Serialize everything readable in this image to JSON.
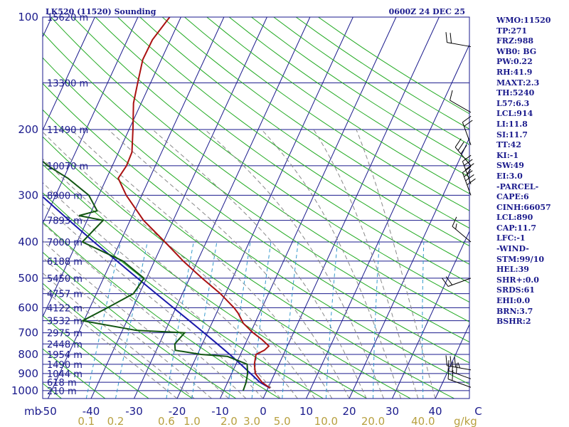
{
  "header": {
    "station": "LK520 (11520) Sounding",
    "time": "0600Z 24 DEC 25"
  },
  "indices": [
    "WMO:11520",
    "TP:271",
    "FRZ:988",
    "WB0: BG",
    "PW:0.22",
    "RH:41.9",
    "MAXT:2.3",
    "TH:5240",
    "L57:6.3",
    "LCL:914",
    "LI:11.8",
    "SI:11.7",
    "TT:42",
    "KI:-1",
    "SW:49",
    "EI:3.0",
    "-PARCEL-",
    "CAPE:6",
    "CINH:66057",
    "LCL:890",
    "CAP:11.7",
    "LFC:-1",
    "-WIND-",
    "STM:99/10",
    "HEL:39",
    "SHR+:0.0",
    "SRDS:61",
    "EHI:0.0",
    "BRN:3.7",
    "BSHR:2"
  ],
  "colors": {
    "isobar": "#1a1a8c",
    "isotherm": "#1a1a8c",
    "dry_adiabat": "#22aa22",
    "moist_adiabat": "#888888",
    "mixing_ratio": "#3399cc",
    "temperature": "#aa1111",
    "dewpoint": "#115511",
    "parcel": "#1a1aaa",
    "wind_barb": "#000000",
    "mixing_label": "#b8a040"
  },
  "chart_data": {
    "type": "skew-t",
    "title": "LK520 (11520) Sounding",
    "pressure_levels": [
      100,
      200,
      300,
      400,
      500,
      600,
      700,
      800,
      900,
      1000
    ],
    "pressure_axis_label": "mb",
    "temperature_ticks": [
      "-50",
      "-40",
      "-30",
      "-20",
      "-10",
      "0",
      "10",
      "20",
      "30",
      "40",
      "C"
    ],
    "mixing_ratio_ticks": [
      "0.1",
      "0.2",
      "0.6",
      "1.0",
      "2.0",
      "3.0",
      "5.0",
      "10.0",
      "20.0",
      "40.0"
    ],
    "mixing_ratio_values": [
      0.1,
      0.2,
      0.6,
      1.0,
      2.0,
      3.0,
      5.0,
      10.0,
      20.0,
      40.0
    ],
    "mixing_ratio_unit": "g/kg",
    "heights": [
      {
        "p": 100,
        "label": "15620 m"
      },
      {
        "p": 150,
        "label": "13300 m"
      },
      {
        "p": 200,
        "label": "11490 m"
      },
      {
        "p": 250,
        "label": "10070 m"
      },
      {
        "p": 300,
        "label": "8900 m"
      },
      {
        "p": 350,
        "label": "7893 m"
      },
      {
        "p": 400,
        "label": "7000 m"
      },
      {
        "p": 450,
        "label": "6188 m"
      },
      {
        "p": 500,
        "label": "5450 m"
      },
      {
        "p": 550,
        "label": "4757 m"
      },
      {
        "p": 600,
        "label": "4122 m"
      },
      {
        "p": 650,
        "label": "3532 m"
      },
      {
        "p": 700,
        "label": "2975 m"
      },
      {
        "p": 750,
        "label": "2448 m"
      },
      {
        "p": 800,
        "label": "1954 m"
      },
      {
        "p": 850,
        "label": "1490 m"
      },
      {
        "p": 900,
        "label": "1044 m"
      },
      {
        "p": 950,
        "label": "618 m"
      },
      {
        "p": 1000,
        "label": "210 m"
      }
    ],
    "temperature": [
      {
        "p": 985,
        "t": 0.5
      },
      {
        "p": 950,
        "t": -2
      },
      {
        "p": 900,
        "t": -4.5
      },
      {
        "p": 850,
        "t": -5.7
      },
      {
        "p": 800,
        "t": -6.4
      },
      {
        "p": 780,
        "t": -4.9
      },
      {
        "p": 760,
        "t": -4.3
      },
      {
        "p": 730,
        "t": -6.6
      },
      {
        "p": 700,
        "t": -9.4
      },
      {
        "p": 660,
        "t": -12.7
      },
      {
        "p": 620,
        "t": -15
      },
      {
        "p": 600,
        "t": -16.5
      },
      {
        "p": 550,
        "t": -21.2
      },
      {
        "p": 500,
        "t": -27.1
      },
      {
        "p": 450,
        "t": -33.3
      },
      {
        "p": 400,
        "t": -39.6
      },
      {
        "p": 350,
        "t": -46.9
      },
      {
        "p": 300,
        "t": -53.6
      },
      {
        "p": 270,
        "t": -57.3
      },
      {
        "p": 250,
        "t": -56.7
      },
      {
        "p": 230,
        "t": -56.9
      },
      {
        "p": 200,
        "t": -59.1
      },
      {
        "p": 170,
        "t": -61.8
      },
      {
        "p": 150,
        "t": -63
      },
      {
        "p": 130,
        "t": -64.3
      },
      {
        "p": 115,
        "t": -64.2
      },
      {
        "p": 100,
        "t": -62.6
      }
    ],
    "dewpoint": [
      {
        "p": 1000,
        "t": -5.5
      },
      {
        "p": 950,
        "t": -5.7
      },
      {
        "p": 900,
        "t": -6.3
      },
      {
        "p": 850,
        "t": -7.4
      },
      {
        "p": 810,
        "t": -12.8
      },
      {
        "p": 800,
        "t": -19.2
      },
      {
        "p": 780,
        "t": -25.6
      },
      {
        "p": 750,
        "t": -26.4
      },
      {
        "p": 700,
        "t": -25.3
      },
      {
        "p": 690,
        "t": -36.7
      },
      {
        "p": 650,
        "t": -50.3
      },
      {
        "p": 600,
        "t": -45.9
      },
      {
        "p": 550,
        "t": -41.4
      },
      {
        "p": 500,
        "t": -40.6
      },
      {
        "p": 450,
        "t": -47.3
      },
      {
        "p": 400,
        "t": -58.8
      },
      {
        "p": 350,
        "t": -56.3
      },
      {
        "p": 340,
        "t": -62.4
      },
      {
        "p": 330,
        "t": -58.7
      },
      {
        "p": 300,
        "t": -62.3
      },
      {
        "p": 270,
        "t": -69
      },
      {
        "p": 250,
        "t": -75
      },
      {
        "p": 230,
        "t": -80.1
      },
      {
        "p": 200,
        "t": -84.9
      },
      {
        "p": 170,
        "t": -88.8
      },
      {
        "p": 150,
        "t": -92.2
      },
      {
        "p": 130,
        "t": -95.9
      },
      {
        "p": 115,
        "t": -99.3
      },
      {
        "p": 100,
        "t": -103.1
      }
    ],
    "parcel": [
      {
        "p": 985,
        "t": 0.5
      },
      {
        "p": 950,
        "t": -2.5
      },
      {
        "p": 900,
        "t": -5.6
      },
      {
        "p": 850,
        "t": -8.9
      },
      {
        "p": 800,
        "t": -12.5
      },
      {
        "p": 750,
        "t": -16.5
      },
      {
        "p": 700,
        "t": -20.8
      },
      {
        "p": 650,
        "t": -25.5
      },
      {
        "p": 600,
        "t": -30.6
      },
      {
        "p": 550,
        "t": -36.1
      },
      {
        "p": 500,
        "t": -42.1
      },
      {
        "p": 450,
        "t": -48.7
      },
      {
        "p": 400,
        "t": -56.1
      },
      {
        "p": 350,
        "t": -64.2
      },
      {
        "p": 300,
        "t": -73.4
      },
      {
        "p": 250,
        "t": -84.2
      },
      {
        "p": 200,
        "t": -97.1
      },
      {
        "p": 150,
        "t": -113.6
      },
      {
        "p": 120,
        "t": -126.2
      }
    ],
    "winds": [
      {
        "p": 980,
        "dir": 290,
        "kt": 20
      },
      {
        "p": 930,
        "dir": 290,
        "kt": 30
      },
      {
        "p": 880,
        "dir": 280,
        "kt": 35
      },
      {
        "p": 500,
        "dir": 250,
        "kt": 20
      },
      {
        "p": 400,
        "dir": 310,
        "kt": 15
      },
      {
        "p": 300,
        "dir": 340,
        "kt": 40
      },
      {
        "p": 280,
        "dir": 340,
        "kt": 35
      },
      {
        "p": 250,
        "dir": 320,
        "kt": 30
      },
      {
        "p": 220,
        "dir": 340,
        "kt": 20
      },
      {
        "p": 180,
        "dir": 300,
        "kt": 10
      },
      {
        "p": 120,
        "dir": 280,
        "kt": 20
      }
    ]
  }
}
